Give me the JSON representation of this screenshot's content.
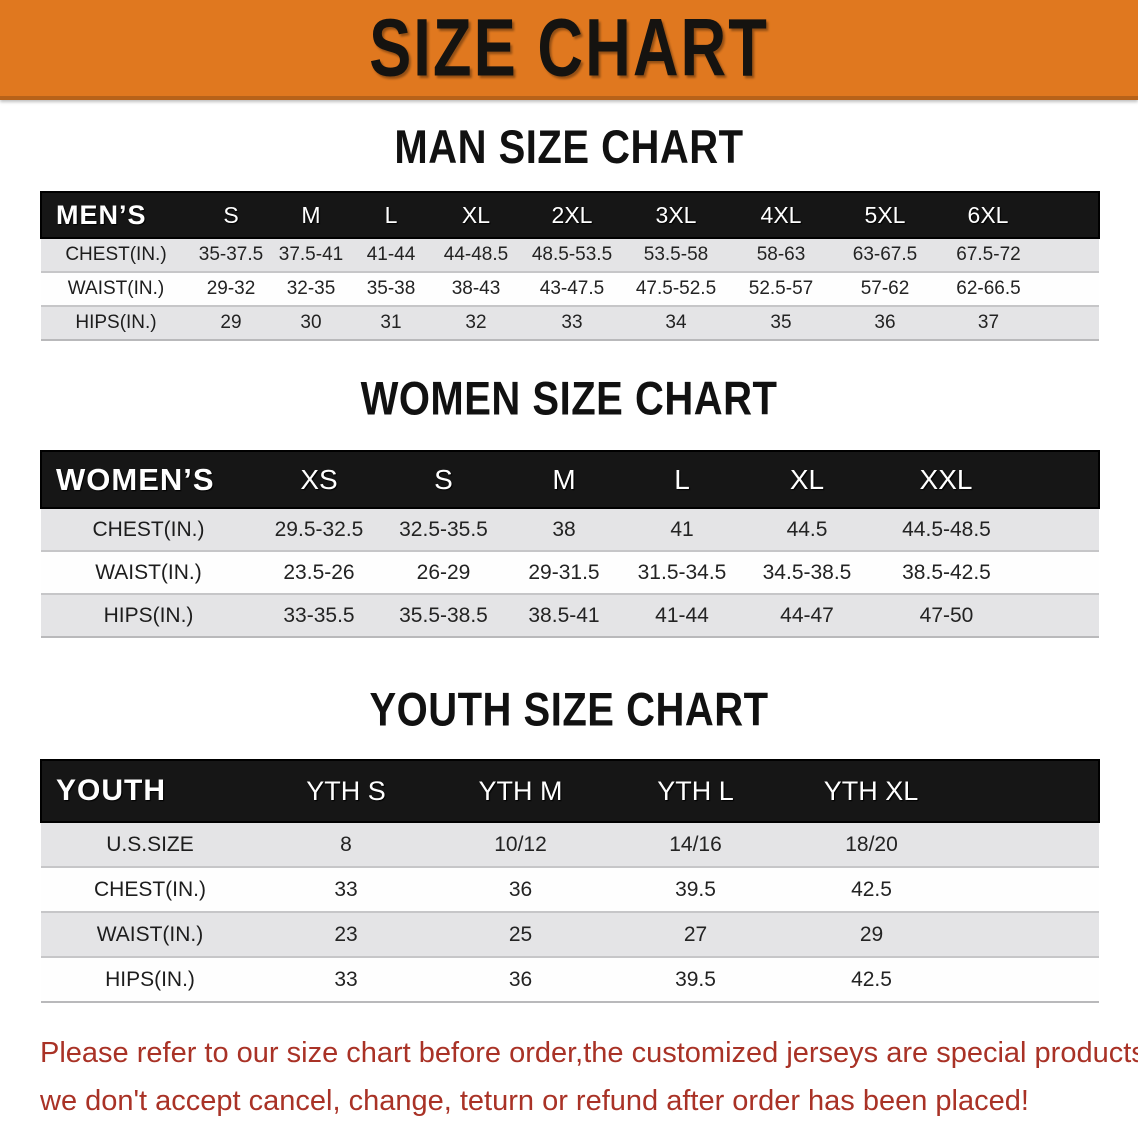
{
  "banner": {
    "title": "SIZE CHART"
  },
  "colors": {
    "banner_bg": "#E0781F",
    "header_bar_bg": "#161616",
    "header_bar_text": "#FFFFFF",
    "row_stripe": "#E4E4E6",
    "footer_text": "#A93226"
  },
  "sections": [
    {
      "id": "men",
      "title": "MAN SIZE CHART",
      "header_label": "MEN’S",
      "columns": [
        "S",
        "M",
        "L",
        "XL",
        "2XL",
        "3XL",
        "4XL",
        "5XL",
        "6XL"
      ],
      "rows": [
        {
          "label": "CHEST(IN.)",
          "values": [
            "35-37.5",
            "37.5-41",
            "41-44",
            "44-48.5",
            "48.5-53.5",
            "53.5-58",
            "58-63",
            "63-67.5",
            "67.5-72"
          ]
        },
        {
          "label": "WAIST(IN.)",
          "values": [
            "29-32",
            "32-35",
            "35-38",
            "38-43",
            "43-47.5",
            "47.5-52.5",
            "52.5-57",
            "57-62",
            "62-66.5"
          ]
        },
        {
          "label": "HIPS(IN.)",
          "values": [
            "29",
            "30",
            "31",
            "32",
            "33",
            "34",
            "35",
            "36",
            "37"
          ]
        }
      ]
    },
    {
      "id": "women",
      "title": "WOMEN SIZE CHART",
      "header_label": "WOMEN’S",
      "columns": [
        "XS",
        "S",
        "M",
        "L",
        "XL",
        "XXL"
      ],
      "rows": [
        {
          "label": "CHEST(IN.)",
          "values": [
            "29.5-32.5",
            "32.5-35.5",
            "38",
            "41",
            "44.5",
            "44.5-48.5"
          ]
        },
        {
          "label": "WAIST(IN.)",
          "values": [
            "23.5-26",
            "26-29",
            "29-31.5",
            "31.5-34.5",
            "34.5-38.5",
            "38.5-42.5"
          ]
        },
        {
          "label": "HIPS(IN.)",
          "values": [
            "33-35.5",
            "35.5-38.5",
            "38.5-41",
            "41-44",
            "44-47",
            "47-50"
          ]
        }
      ]
    },
    {
      "id": "youth",
      "title": "YOUTH SIZE CHART",
      "header_label": "YOUTH",
      "columns": [
        "YTH S",
        "YTH M",
        "YTH L",
        "YTH XL"
      ],
      "rows": [
        {
          "label": "U.S.SIZE",
          "values": [
            "8",
            "10/12",
            "14/16",
            "18/20"
          ]
        },
        {
          "label": "CHEST(IN.)",
          "values": [
            "33",
            "36",
            "39.5",
            "42.5"
          ]
        },
        {
          "label": "WAIST(IN.)",
          "values": [
            "23",
            "25",
            "27",
            "29"
          ]
        },
        {
          "label": "HIPS(IN.)",
          "values": [
            "33",
            "36",
            "39.5",
            "42.5"
          ]
        }
      ]
    }
  ],
  "footer": {
    "line1": "Please refer to our size chart before order,the customized jerseys are special products,",
    "line2": "we don't accept cancel, change, teturn or refund after order has been placed!"
  }
}
